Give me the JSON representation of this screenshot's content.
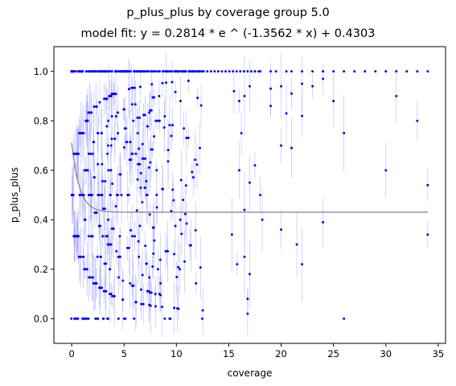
{
  "chart_data": {
    "type": "scatter",
    "title": "p_plus_plus by coverage group 5.0",
    "subtitle": "model fit: y = 0.2814 * e ^ (-1.3562 * x) + 0.4303",
    "xlabel": "coverage",
    "ylabel": "p_plus_plus",
    "xlim": [
      -1.7,
      35.7
    ],
    "ylim": [
      -0.1,
      1.1
    ],
    "xticks": [
      "0",
      "5",
      "10",
      "15",
      "20",
      "25",
      "30",
      "35"
    ],
    "xtick_values": [
      0,
      5,
      10,
      15,
      20,
      25,
      30,
      35
    ],
    "yticks": [
      "0.0",
      "0.2",
      "0.4",
      "0.6",
      "0.8",
      "1.0"
    ],
    "ytick_values": [
      0.0,
      0.2,
      0.4,
      0.6,
      0.8,
      1.0
    ],
    "grid": false,
    "colors": {
      "points": "#0000ff",
      "error_bars": "#8080ff",
      "fit_line": "#808080"
    },
    "fit": {
      "a": 0.2814,
      "b": -1.3562,
      "c": 0.4303,
      "x_range": [
        0,
        34
      ]
    },
    "series": [
      {
        "note": "sparse visible points beyond dense region",
        "points": [
          [
            17.5,
            1.0
          ],
          [
            18.0,
            1.0
          ],
          [
            19.0,
            1.0
          ],
          [
            19.5,
            1.0
          ],
          [
            20.5,
            1.0
          ],
          [
            21.0,
            1.0
          ],
          [
            22.0,
            1.0
          ],
          [
            23.0,
            1.0
          ],
          [
            24.0,
            1.0
          ],
          [
            25.0,
            1.0
          ],
          [
            26.0,
            1.0
          ],
          [
            27.0,
            1.0
          ],
          [
            28.0,
            1.0
          ],
          [
            29.0,
            1.0
          ],
          [
            30.0,
            1.0
          ],
          [
            31.0,
            1.0
          ],
          [
            32.0,
            1.0
          ],
          [
            33.0,
            1.0
          ],
          [
            34.0,
            1.0
          ],
          [
            15.5,
            0.92
          ],
          [
            16.0,
            0.88
          ],
          [
            16.5,
            0.9
          ],
          [
            17.0,
            0.94
          ],
          [
            16.2,
            0.75
          ],
          [
            17.5,
            0.62
          ],
          [
            18.0,
            0.5
          ],
          [
            18.2,
            0.4
          ],
          [
            17.0,
            0.55
          ],
          [
            16.0,
            0.6
          ],
          [
            16.5,
            0.44
          ],
          [
            15.3,
            0.34
          ],
          [
            15.8,
            0.22
          ],
          [
            16.5,
            0.25
          ],
          [
            17.0,
            0.18
          ],
          [
            16.8,
            0.08
          ],
          [
            16.8,
            0.02
          ],
          [
            19.0,
            0.86
          ],
          [
            19.0,
            0.93
          ],
          [
            20.0,
            0.94
          ],
          [
            20.5,
            0.83
          ],
          [
            21.0,
            0.91
          ],
          [
            22.0,
            0.95
          ],
          [
            22.0,
            0.82
          ],
          [
            23.0,
            0.94
          ],
          [
            24.0,
            0.97
          ],
          [
            25.0,
            0.88
          ],
          [
            26.0,
            0.75
          ],
          [
            20.0,
            0.7
          ],
          [
            21.0,
            0.69
          ],
          [
            20.0,
            0.36
          ],
          [
            21.5,
            0.3
          ],
          [
            22.0,
            0.22
          ],
          [
            24.0,
            0.39
          ],
          [
            26.0,
            0.0
          ],
          [
            30.0,
            0.6
          ],
          [
            31.0,
            0.9
          ],
          [
            33.0,
            0.8
          ],
          [
            34.0,
            0.54
          ],
          [
            34.0,
            0.34
          ]
        ]
      }
    ]
  }
}
